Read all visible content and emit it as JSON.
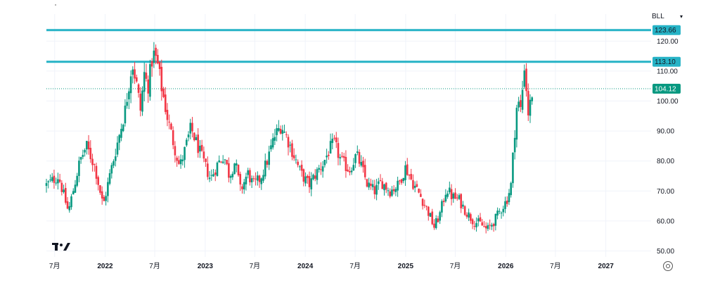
{
  "symbol": {
    "label": "BLL",
    "dropdown_icon": "chevron-down-icon"
  },
  "logo": {
    "icon": "tradingview-logo-icon"
  },
  "settings": {
    "icon": "settings-icon"
  },
  "chart_data": {
    "type": "candlestick",
    "y_axis": {
      "position": "right",
      "range": [
        48,
        129
      ],
      "ticks": [
        "50.00",
        "60.00",
        "70.00",
        "80.00",
        "90.00",
        "100.00",
        "110.00",
        "120.00"
      ],
      "tick_values": [
        50,
        60,
        70,
        80,
        90,
        100,
        110,
        120
      ]
    },
    "x_axis": {
      "range": [
        "2021-06-01",
        "2027-06-15"
      ],
      "labels": [
        {
          "text": "7月",
          "date": "2021-07-01",
          "bold": false
        },
        {
          "text": "2022",
          "date": "2022-01-01",
          "bold": true
        },
        {
          "text": "7月",
          "date": "2022-07-01",
          "bold": false
        },
        {
          "text": "2023",
          "date": "2023-01-01",
          "bold": true
        },
        {
          "text": "7月",
          "date": "2023-07-01",
          "bold": false
        },
        {
          "text": "2024",
          "date": "2024-01-01",
          "bold": true
        },
        {
          "text": "7月",
          "date": "2024-07-01",
          "bold": false
        },
        {
          "text": "2025",
          "date": "2025-01-01",
          "bold": true
        },
        {
          "text": "7月",
          "date": "2025-07-01",
          "bold": false
        },
        {
          "text": "2026",
          "date": "2026-01-01",
          "bold": true
        },
        {
          "text": "7月",
          "date": "2026-07-01",
          "bold": false
        },
        {
          "text": "2027",
          "date": "2027-01-01",
          "bold": true
        }
      ]
    },
    "horizontal_lines": [
      {
        "value": 123.66,
        "label": "123.66",
        "color": "#26b3c6"
      },
      {
        "value": 113.1,
        "label": "113.10",
        "color": "#26b3c6"
      }
    ],
    "last_price": {
      "value": 104.12,
      "label": "104.12",
      "color": "#089981"
    },
    "grid": true,
    "colors": {
      "up": "#089981",
      "down": "#f23645",
      "grid": "#f0f3fa"
    },
    "price_path": [
      [
        "2021-06-01",
        72
      ],
      [
        "2021-07-15",
        75
      ],
      [
        "2021-08-20",
        63
      ],
      [
        "2021-10-01",
        80
      ],
      [
        "2021-10-25",
        85
      ],
      [
        "2021-11-25",
        78
      ],
      [
        "2021-12-25",
        65
      ],
      [
        "2022-01-15",
        74
      ],
      [
        "2022-02-20",
        88
      ],
      [
        "2022-03-15",
        97
      ],
      [
        "2022-04-10",
        113
      ],
      [
        "2022-04-25",
        106
      ],
      [
        "2022-05-10",
        97
      ],
      [
        "2022-05-25",
        110
      ],
      [
        "2022-06-05",
        104
      ],
      [
        "2022-06-25",
        116
      ],
      [
        "2022-07-10",
        113
      ],
      [
        "2022-07-25",
        105
      ],
      [
        "2022-08-15",
        95
      ],
      [
        "2022-09-10",
        85
      ],
      [
        "2022-09-30",
        78
      ],
      [
        "2022-10-20",
        84
      ],
      [
        "2022-11-10",
        91
      ],
      [
        "2022-11-30",
        86
      ],
      [
        "2022-12-25",
        80
      ],
      [
        "2023-01-20",
        74
      ],
      [
        "2023-02-15",
        79
      ],
      [
        "2023-03-10",
        82
      ],
      [
        "2023-03-30",
        75
      ],
      [
        "2023-04-20",
        80
      ],
      [
        "2023-05-10",
        70
      ],
      [
        "2023-06-05",
        76
      ],
      [
        "2023-06-25",
        72
      ],
      [
        "2023-07-20",
        74
      ],
      [
        "2023-08-15",
        80
      ],
      [
        "2023-09-10",
        88
      ],
      [
        "2023-10-05",
        92
      ],
      [
        "2023-10-25",
        88
      ],
      [
        "2023-11-20",
        82
      ],
      [
        "2023-12-15",
        76
      ],
      [
        "2024-01-15",
        72
      ],
      [
        "2024-02-10",
        76
      ],
      [
        "2024-03-05",
        79
      ],
      [
        "2024-03-30",
        84
      ],
      [
        "2024-04-15",
        86
      ],
      [
        "2024-05-10",
        80
      ],
      [
        "2024-06-10",
        77
      ],
      [
        "2024-07-05",
        82
      ],
      [
        "2024-07-20",
        79
      ],
      [
        "2024-08-15",
        72
      ],
      [
        "2024-09-10",
        70
      ],
      [
        "2024-10-05",
        73
      ],
      [
        "2024-11-05",
        70
      ],
      [
        "2024-12-05",
        72
      ],
      [
        "2025-01-01",
        78
      ],
      [
        "2025-01-25",
        73
      ],
      [
        "2025-02-20",
        69
      ],
      [
        "2025-03-20",
        64
      ],
      [
        "2025-04-15",
        58
      ],
      [
        "2025-05-05",
        62
      ],
      [
        "2025-05-30",
        71
      ],
      [
        "2025-06-20",
        68
      ],
      [
        "2025-07-15",
        67
      ],
      [
        "2025-08-10",
        63
      ],
      [
        "2025-09-05",
        60
      ],
      [
        "2025-10-01",
        59
      ],
      [
        "2025-10-25",
        57
      ],
      [
        "2025-11-20",
        60
      ],
      [
        "2025-12-15",
        64
      ],
      [
        "2026-01-05",
        67
      ],
      [
        "2026-01-20",
        72
      ],
      [
        "2026-02-01",
        88
      ],
      [
        "2026-02-12",
        100
      ],
      [
        "2026-02-25",
        97
      ],
      [
        "2026-03-10",
        112
      ],
      [
        "2026-03-25",
        95
      ],
      [
        "2026-04-05",
        102
      ],
      [
        "2026-04-12",
        104.12
      ]
    ]
  }
}
